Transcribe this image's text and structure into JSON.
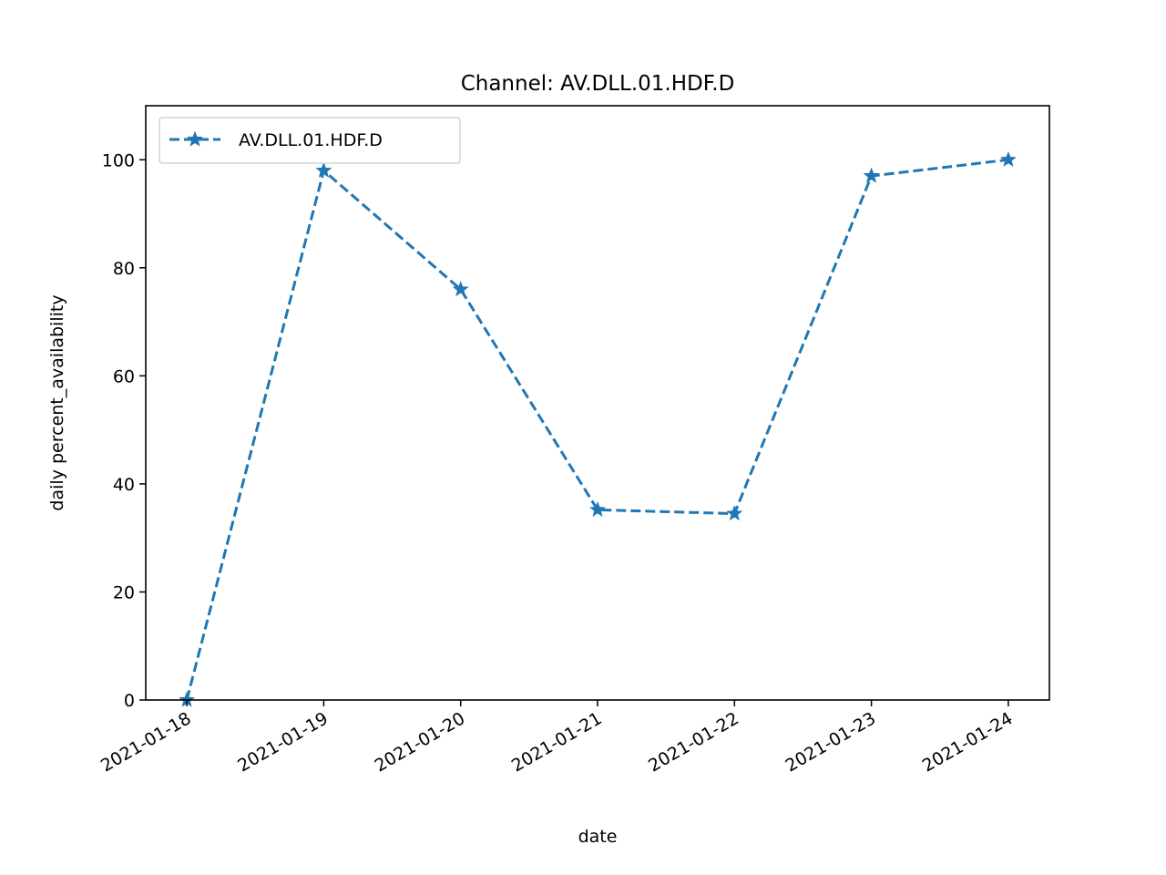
{
  "chart_data": {
    "type": "line",
    "title": "Channel: AV.DLL.01.HDF.D",
    "xlabel": "date",
    "ylabel": "daily percent_availability",
    "x": [
      "2021-01-18",
      "2021-01-19",
      "2021-01-20",
      "2021-01-21",
      "2021-01-22",
      "2021-01-23",
      "2021-01-24"
    ],
    "xticks": [
      "2021-01-18",
      "2021-01-19",
      "2021-01-20",
      "2021-01-21",
      "2021-01-22",
      "2021-01-23",
      "2021-01-24"
    ],
    "yticks": [
      0,
      20,
      40,
      60,
      80,
      100
    ],
    "ylim": [
      0,
      110
    ],
    "xlim": [
      "2021-01-17.7",
      "2021-01-24.3"
    ],
    "grid": false,
    "legend_position": "top-left",
    "series": [
      {
        "name": "AV.DLL.01.HDF.D",
        "color": "#1f77b4",
        "linestyle": "dashed",
        "marker": "star",
        "values": [
          0,
          98,
          76,
          35.2,
          34.5,
          97,
          100
        ]
      }
    ]
  }
}
